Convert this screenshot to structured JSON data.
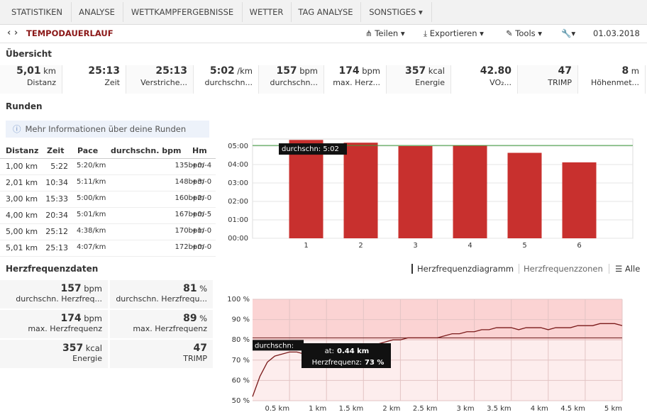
{
  "tabs": [
    "STATISTIKEN",
    "ANALYSE",
    "WETTKAMPFERGEBNISSE",
    "WETTER",
    "TAG ANALYSE",
    "SONSTIGES"
  ],
  "toolbar": {
    "title": "TEMPODAUERLAUF",
    "buttons": [
      "Teilen",
      "Exportieren",
      "Tools"
    ],
    "date": "01.03.2018"
  },
  "overview": {
    "title": "Übersicht",
    "stats": [
      {
        "value": "5,01",
        "unit": "km",
        "label": "Distanz"
      },
      {
        "value": "25:13",
        "label": "Zeit"
      },
      {
        "value": "25:13",
        "label": "Verstriche..."
      },
      {
        "value": "5:02",
        "unit": "/km",
        "label": "durchschn..."
      },
      {
        "value": "157",
        "unit": "bpm",
        "label": "durchschn..."
      },
      {
        "value": "174",
        "unit": "bpm",
        "label": "max. Herz..."
      },
      {
        "value": "357",
        "unit": "kcal",
        "label": "Energie"
      },
      {
        "value": "42.80",
        "label": "VO₂..."
      },
      {
        "value": "47",
        "label": "TRIMP"
      },
      {
        "value": "8",
        "unit": "m",
        "label": "Höhenmet..."
      }
    ]
  },
  "rounds": {
    "title": "Runden",
    "info": "Mehr Informationen über deine Runden",
    "headers": [
      "Distanz",
      "Zeit",
      "Pace",
      "durchschn. bpm",
      "Hm"
    ],
    "rows": [
      [
        "1,00 km",
        "5:22",
        "5:20/km",
        "135bpm",
        "+0/-4"
      ],
      [
        "2,01 km",
        "10:34",
        "5:11/km",
        "148bpm",
        "+3/-0"
      ],
      [
        "3,00 km",
        "15:33",
        "5:00/km",
        "160bpm",
        "+2/-0"
      ],
      [
        "4,00 km",
        "20:34",
        "5:01/km",
        "167bpm",
        "+0/-5"
      ],
      [
        "5,00 km",
        "25:12",
        "4:38/km",
        "170bpm",
        "+1/-0"
      ],
      [
        "5,01 km",
        "25:13",
        "4:07/km",
        "172bpm",
        "+0/-0"
      ]
    ]
  },
  "heart": {
    "title": "Herzfrequenzdaten",
    "links": [
      "Herzfrequenzdiagramm",
      "Herzfrequenzzonen",
      "Alle"
    ],
    "stats": [
      {
        "value": "157",
        "unit": "bpm",
        "label": "durchschn. Herzfreq..."
      },
      {
        "value": "81",
        "unit": "%",
        "label": "durchschn. Herzfrequ..."
      },
      {
        "value": "174",
        "unit": "bpm",
        "label": "max. Herzfrequenz"
      },
      {
        "value": "89",
        "unit": "%",
        "label": "max. Herzfrequenz"
      },
      {
        "value": "357",
        "unit": "kcal",
        "label": "Energie"
      },
      {
        "value": "47",
        "label": "TRIMP"
      }
    ],
    "tooltip": {
      "label": "at:",
      "x": "0.44 km",
      "series": "Herzfrequenz:",
      "value": "73 %"
    }
  },
  "chart_data": [
    {
      "type": "bar",
      "categories": [
        "1",
        "2",
        "3",
        "4",
        "5",
        "6"
      ],
      "values": [
        320,
        311,
        300,
        301,
        278,
        247
      ],
      "color": "#c8302e",
      "ylim": [
        0,
        323
      ],
      "yticks": [
        {
          "value": 0,
          "label": "00:00"
        },
        {
          "value": 60,
          "label": "01:00"
        },
        {
          "value": 120,
          "label": "02:00"
        },
        {
          "value": 180,
          "label": "03:00"
        },
        {
          "value": 240,
          "label": "04:00"
        },
        {
          "value": 300,
          "label": "05:00"
        }
      ],
      "grid": true,
      "average": {
        "label": "durchschn: 5:02",
        "value": 302,
        "color": "#3c9a3c"
      }
    },
    {
      "type": "line",
      "x": [
        0,
        0.1,
        0.2,
        0.3,
        0.4,
        0.5,
        0.6,
        0.7,
        0.8,
        0.9,
        1,
        1.1,
        1.2,
        1.3,
        1.4,
        1.5,
        1.6,
        1.7,
        1.8,
        1.9,
        2,
        2.1,
        2.2,
        2.3,
        2.4,
        2.5,
        2.6,
        2.7,
        2.8,
        2.9,
        3,
        3.1,
        3.2,
        3.3,
        3.4,
        3.5,
        3.6,
        3.7,
        3.8,
        3.9,
        4,
        4.1,
        4.2,
        4.3,
        4.4,
        4.5,
        4.6,
        4.7,
        4.8,
        4.9,
        5
      ],
      "values": [
        52,
        62,
        69,
        72,
        73,
        74,
        74,
        73,
        73,
        74,
        75,
        75,
        76,
        76,
        77,
        77,
        78,
        78,
        79,
        80,
        80,
        81,
        81,
        81,
        81,
        81,
        82,
        83,
        83,
        84,
        84,
        85,
        85,
        86,
        86,
        86,
        85,
        86,
        86,
        86,
        85,
        86,
        86,
        86,
        87,
        87,
        87,
        88,
        88,
        88,
        87
      ],
      "color": "#7a1a1a",
      "xlim": [
        0,
        5
      ],
      "ylim": [
        50,
        100
      ],
      "xticks": [
        {
          "value": 0.5,
          "label": "0.5 km"
        },
        {
          "value": 1,
          "label": "1 km"
        },
        {
          "value": 1.5,
          "label": "1.5 km"
        },
        {
          "value": 2,
          "label": "2 km"
        },
        {
          "value": 2.5,
          "label": "2.5 km"
        },
        {
          "value": 3,
          "label": "3 km"
        },
        {
          "value": 3.5,
          "label": "3.5 km"
        },
        {
          "value": 4,
          "label": "4 km"
        },
        {
          "value": 4.5,
          "label": "4.5 km"
        },
        {
          "value": 5,
          "label": "5 km"
        }
      ],
      "yticks": [
        {
          "value": 50,
          "label": "50 %"
        },
        {
          "value": 60,
          "label": "60 %"
        },
        {
          "value": 70,
          "label": "70 %"
        },
        {
          "value": 80,
          "label": "80 %"
        },
        {
          "value": 90,
          "label": "90 %"
        },
        {
          "value": 100,
          "label": "100 %"
        }
      ],
      "grid": true,
      "bands": [
        {
          "from": 80,
          "to": 100,
          "color": "#fbd3d3"
        },
        {
          "from": 50,
          "to": 80,
          "color": "#fdeded"
        }
      ],
      "average": {
        "label": "durchschn:",
        "value": 81,
        "color": "#6a1a1a"
      }
    }
  ]
}
